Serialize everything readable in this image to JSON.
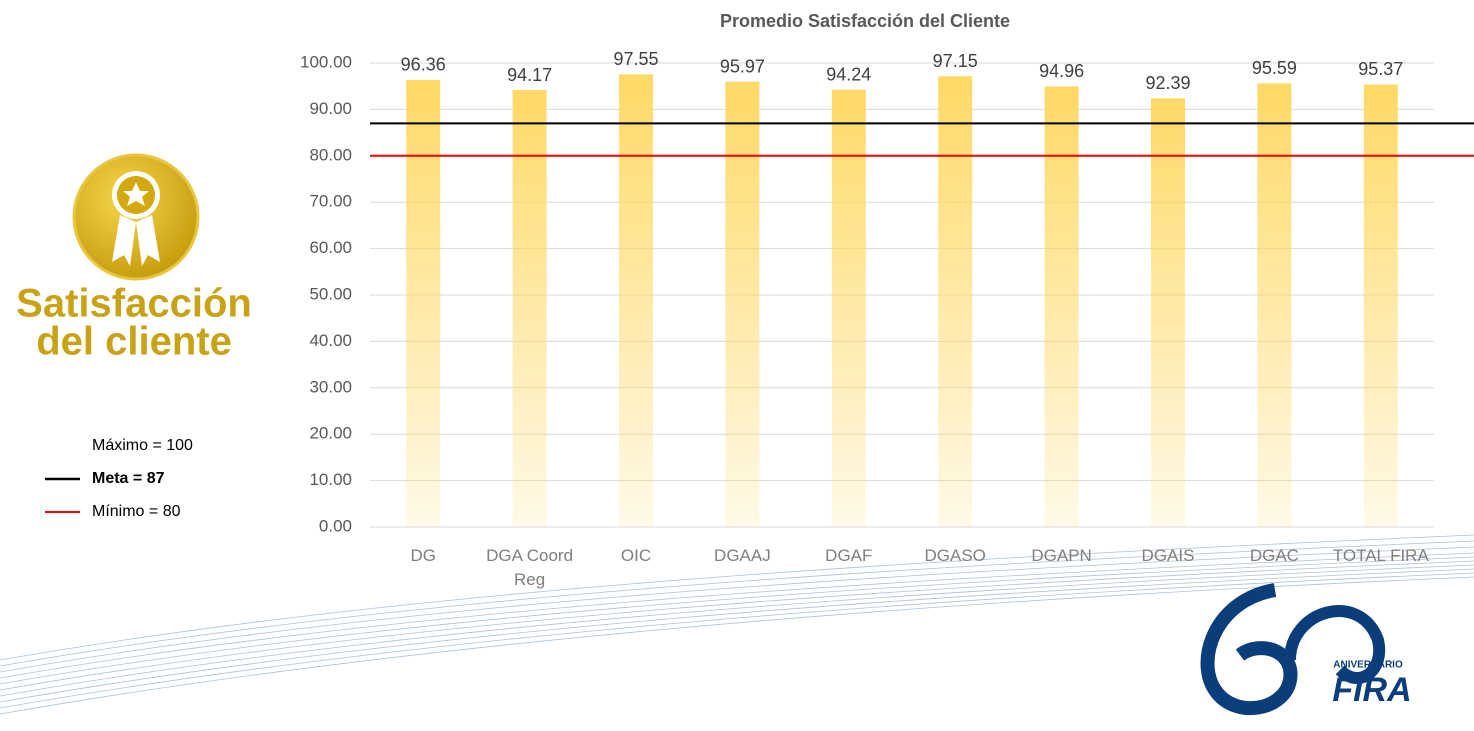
{
  "chart_data": {
    "type": "bar",
    "title": "Promedio Satisfacción del Cliente",
    "categories": [
      "DG",
      "DGA Coord Reg",
      "OIC",
      "DGAAJ",
      "DGAF",
      "DGASO",
      "DGAPN",
      "DGAIS",
      "DGAC",
      "TOTAL FIRA"
    ],
    "values": [
      96.36,
      94.17,
      97.55,
      95.97,
      94.24,
      97.15,
      94.96,
      92.39,
      95.59,
      95.37
    ],
    "color": "#ffd966",
    "ylim": [
      0,
      100
    ],
    "yticks": [
      {
        "value": 0,
        "label": "0.00"
      },
      {
        "value": 10,
        "label": "10.00"
      },
      {
        "value": 20,
        "label": "20.00"
      },
      {
        "value": 30,
        "label": "30.00"
      },
      {
        "value": 40,
        "label": "40.00"
      },
      {
        "value": 50,
        "label": "50.00"
      },
      {
        "value": 60,
        "label": "60.00"
      },
      {
        "value": 70,
        "label": "70.00"
      },
      {
        "value": 80,
        "label": "80.00"
      },
      {
        "value": 90,
        "label": "90.00"
      },
      {
        "value": 100,
        "label": "100.00"
      }
    ],
    "grid": true,
    "legend": [
      {
        "label": "Máximo = 100"
      },
      {
        "label": "Meta = 87",
        "value": 87,
        "color": "#000000"
      },
      {
        "label": "Mínimo = 80",
        "value": 80,
        "color": "#ff0000"
      }
    ]
  },
  "badge": {
    "line1": "Satisfacción",
    "line2": "del cliente"
  },
  "logo": {
    "caption": "ANIVERSARIO",
    "name": "FIRA"
  }
}
